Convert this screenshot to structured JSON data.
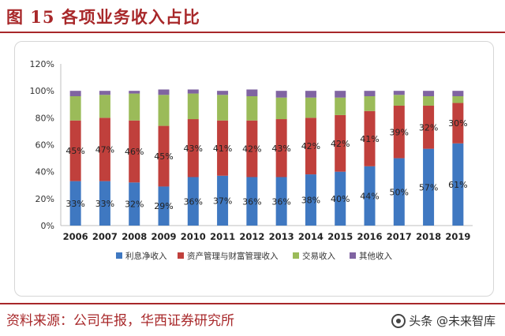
{
  "header": {
    "title": "图 15 各项业务收入占比"
  },
  "footer": {
    "source": "资料来源：公司年报，华西证券研究所",
    "watermark": "头条 @未来智库"
  },
  "colors": {
    "net_interest": "#3f78c1",
    "fee_commission": "#c0403c",
    "trading": "#9bbb59",
    "other": "#8064a2",
    "title": "#a8282a"
  },
  "chart_data": {
    "type": "bar",
    "stacked": true,
    "categories": [
      "2006",
      "2007",
      "2008",
      "2009",
      "2010",
      "2011",
      "2012",
      "2013",
      "2014",
      "2015",
      "2016",
      "2017",
      "2018",
      "2019"
    ],
    "series": [
      {
        "name": "利息净收入",
        "color": "#3f78c1",
        "values": [
          33,
          33,
          32,
          29,
          36,
          37,
          36,
          36,
          38,
          40,
          44,
          50,
          57,
          61
        ],
        "labels": [
          "33%",
          "33%",
          "32%",
          "29%",
          "36%",
          "37%",
          "36%",
          "36%",
          "38%",
          "40%",
          "44%",
          "50%",
          "57%",
          "61%"
        ]
      },
      {
        "name": "资产管理与财富管理收入",
        "color": "#c0403c",
        "values": [
          45,
          47,
          46,
          45,
          43,
          41,
          42,
          43,
          42,
          42,
          41,
          39,
          32,
          30
        ],
        "labels": [
          "45%",
          "47%",
          "46%",
          "45%",
          "43%",
          "41%",
          "42%",
          "43%",
          "42%",
          "42%",
          "41%",
          "39%",
          "32%",
          "30%"
        ]
      },
      {
        "name": "交易收入",
        "color": "#9bbb59",
        "values": [
          18,
          17,
          20,
          23,
          19,
          19,
          18,
          16,
          15,
          13,
          11,
          8,
          7,
          5
        ]
      },
      {
        "name": "其他收入",
        "color": "#8064a2",
        "values": [
          4,
          3,
          2,
          4,
          3,
          3,
          5,
          5,
          5,
          5,
          4,
          3,
          4,
          4
        ]
      }
    ],
    "y_ticks": [
      "0%",
      "20%",
      "40%",
      "60%",
      "80%",
      "100%",
      "120%"
    ],
    "ylim": [
      0,
      120
    ],
    "legend_position": "bottom"
  }
}
